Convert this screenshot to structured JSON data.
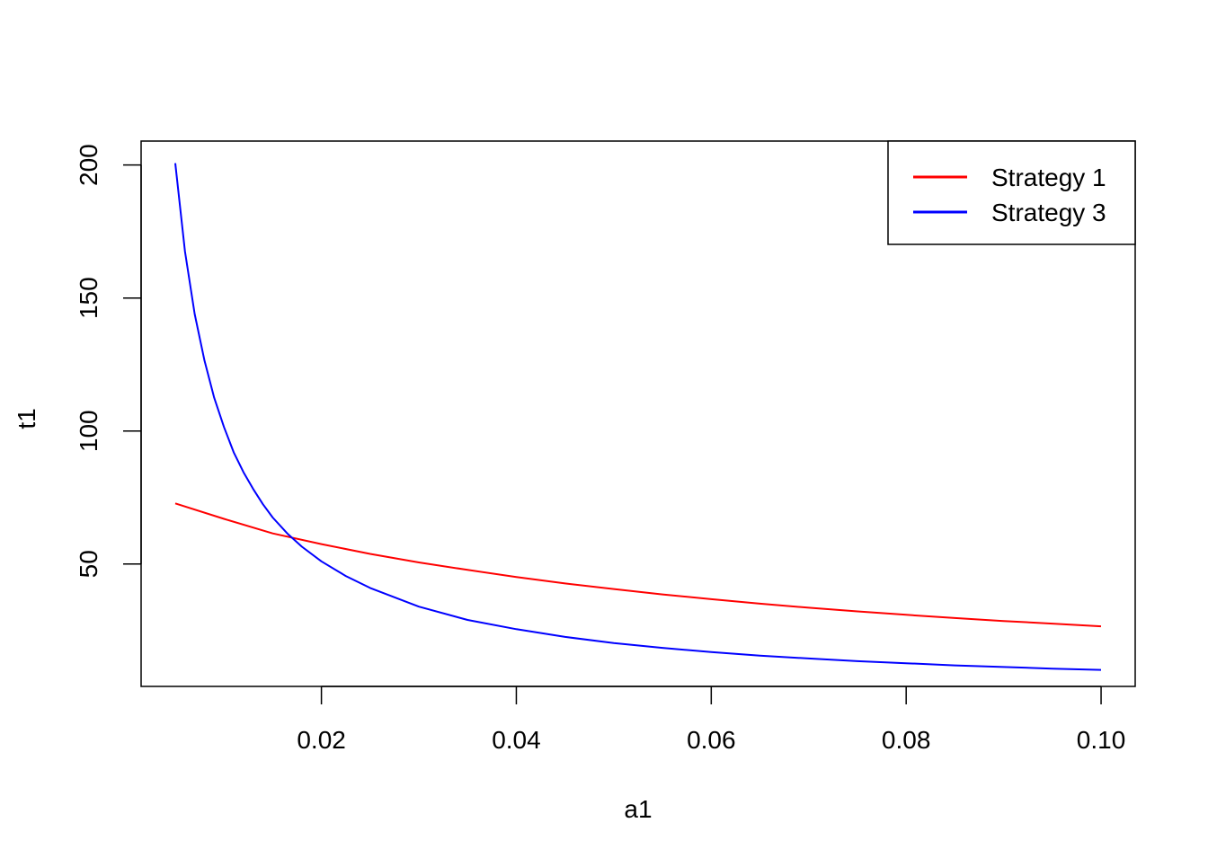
{
  "chart_data": {
    "type": "line",
    "title": "",
    "xlabel": "a1",
    "ylabel": "t1",
    "xlim": [
      0.0015,
      0.1035
    ],
    "ylim": [
      4,
      209
    ],
    "x_ticks": [
      0.02,
      0.04,
      0.06,
      0.08,
      0.1
    ],
    "x_tick_labels": [
      "0.02",
      "0.04",
      "0.06",
      "0.08",
      "0.10"
    ],
    "y_ticks": [
      50,
      100,
      150,
      200
    ],
    "y_tick_labels": [
      "50",
      "100",
      "150",
      "200"
    ],
    "grid": false,
    "legend_position": "top-right",
    "series": [
      {
        "name": "Strategy 1",
        "color": "#ff0000",
        "x": [
          0.005,
          0.01,
          0.015,
          0.02,
          0.025,
          0.03,
          0.035,
          0.04,
          0.045,
          0.05,
          0.055,
          0.06,
          0.065,
          0.07,
          0.075,
          0.08,
          0.085,
          0.09,
          0.095,
          0.1
        ],
        "y": [
          72.8,
          67.0,
          61.5,
          57.5,
          53.8,
          50.6,
          47.8,
          45.1,
          42.7,
          40.6,
          38.6,
          36.8,
          35.1,
          33.6,
          32.2,
          30.9,
          29.7,
          28.6,
          27.6,
          26.6
        ]
      },
      {
        "name": "Strategy 3",
        "color": "#0000ff",
        "x": [
          0.005,
          0.006,
          0.007,
          0.008,
          0.009,
          0.01,
          0.011,
          0.012,
          0.013,
          0.014,
          0.015,
          0.0165,
          0.018,
          0.02,
          0.0225,
          0.025,
          0.03,
          0.035,
          0.04,
          0.045,
          0.05,
          0.055,
          0.06,
          0.065,
          0.07,
          0.075,
          0.08,
          0.085,
          0.09,
          0.095,
          0.1
        ],
        "y": [
          200.7,
          167.5,
          144.0,
          126.5,
          112.5,
          101.5,
          92.0,
          84.5,
          78.2,
          72.5,
          67.5,
          61.5,
          56.5,
          51.0,
          45.5,
          41.0,
          34.0,
          29.0,
          25.5,
          22.6,
          20.3,
          18.5,
          16.9,
          15.6,
          14.5,
          13.5,
          12.7,
          11.9,
          11.3,
          10.7,
          10.2
        ]
      }
    ]
  }
}
